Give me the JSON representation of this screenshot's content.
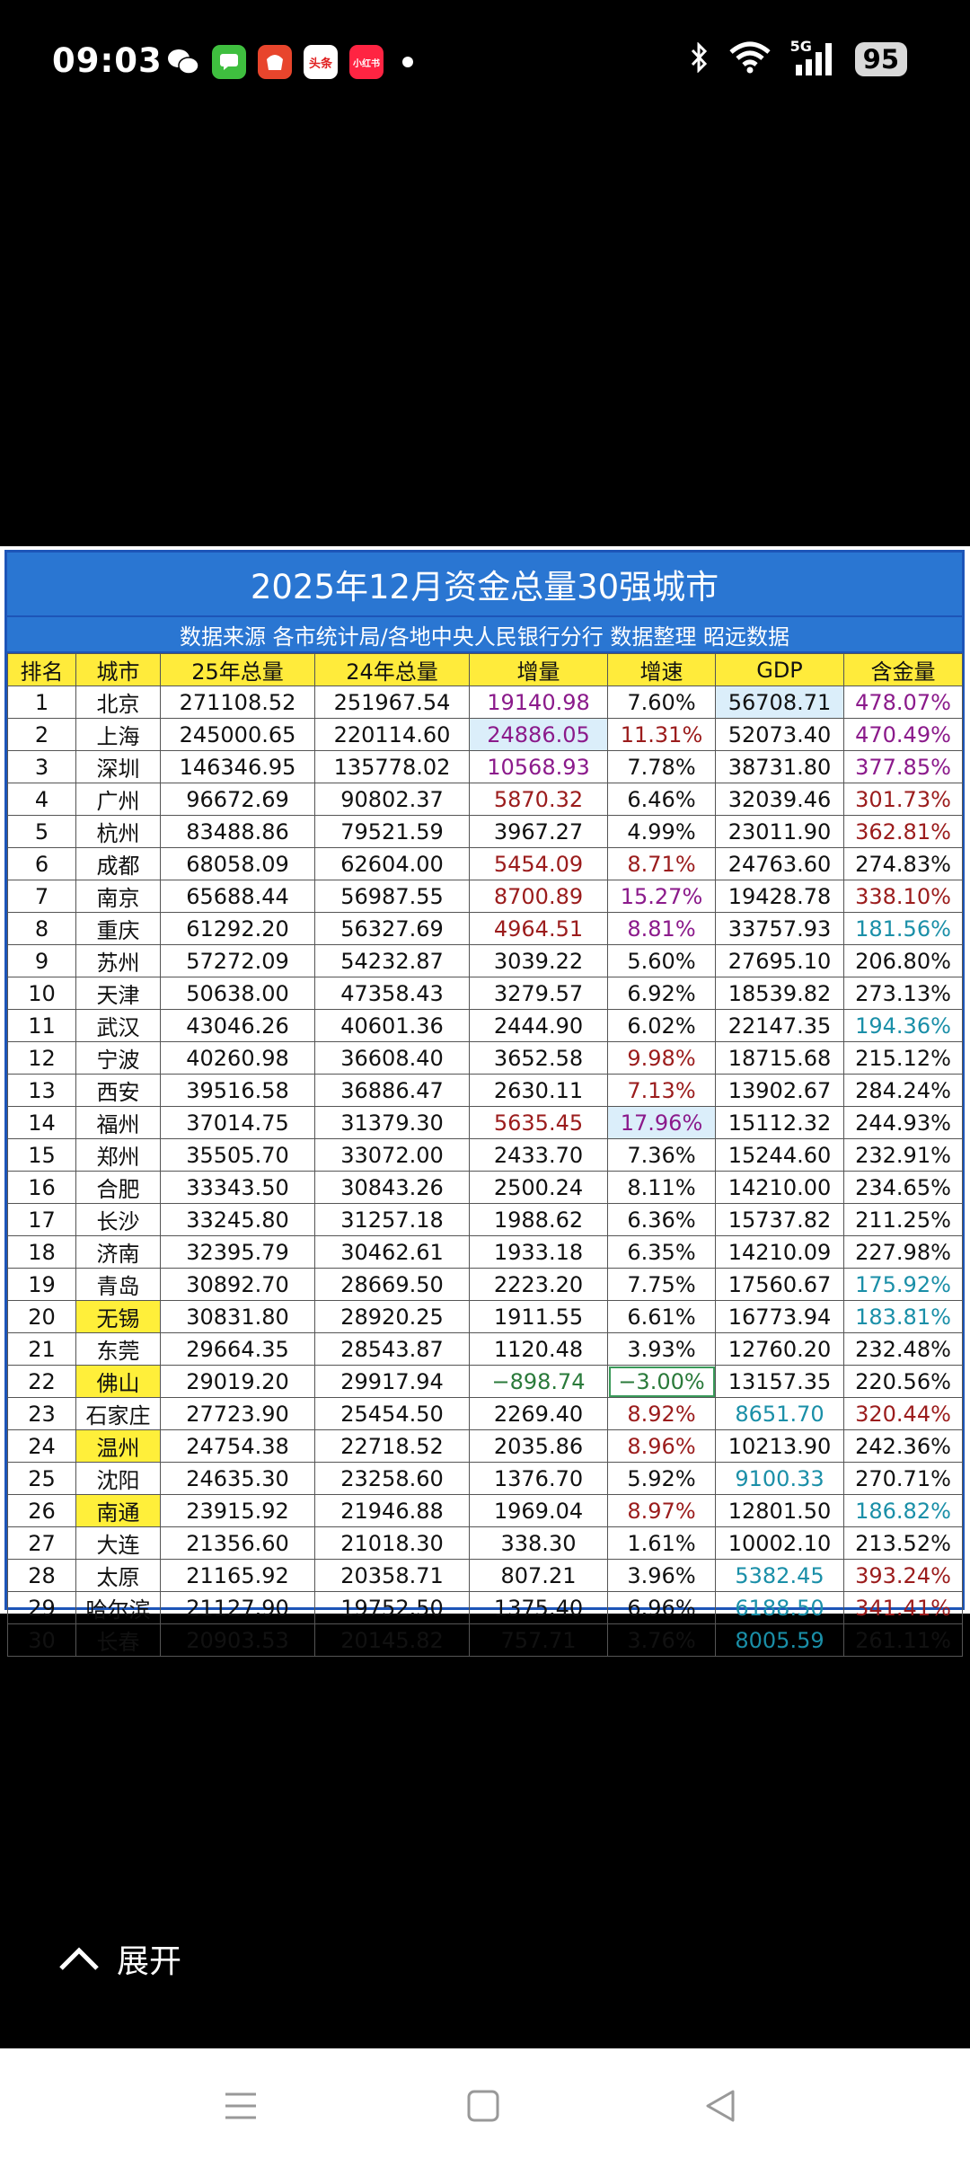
{
  "status_bar": {
    "time": "09:03",
    "notif_labels": [
      "头条",
      "小红书"
    ],
    "network": "5G",
    "battery": "95"
  },
  "table": {
    "title": "2025年12月资金总量30强城市",
    "subtitle": "数据来源 各市统计局/各地中央人民银行分行  数据整理 昭远数据",
    "headers": [
      "排名",
      "城市",
      "25年总量",
      "24年总量",
      "增量",
      "增速",
      "GDP",
      "含金量"
    ],
    "rows": [
      [
        "1",
        "北京",
        "271108.52",
        "251967.54",
        "19140.98",
        "7.60%",
        "56708.71",
        "478.07%"
      ],
      [
        "2",
        "上海",
        "245000.65",
        "220114.60",
        "24886.05",
        "11.31%",
        "52073.40",
        "470.49%"
      ],
      [
        "3",
        "深圳",
        "146346.95",
        "135778.02",
        "10568.93",
        "7.78%",
        "38731.80",
        "377.85%"
      ],
      [
        "4",
        "广州",
        "96672.69",
        "90802.37",
        "5870.32",
        "6.46%",
        "32039.46",
        "301.73%"
      ],
      [
        "5",
        "杭州",
        "83488.86",
        "79521.59",
        "3967.27",
        "4.99%",
        "23011.90",
        "362.81%"
      ],
      [
        "6",
        "成都",
        "68058.09",
        "62604.00",
        "5454.09",
        "8.71%",
        "24763.60",
        "274.83%"
      ],
      [
        "7",
        "南京",
        "65688.44",
        "56987.55",
        "8700.89",
        "15.27%",
        "19428.78",
        "338.10%"
      ],
      [
        "8",
        "重庆",
        "61292.20",
        "56327.69",
        "4964.51",
        "8.81%",
        "33757.93",
        "181.56%"
      ],
      [
        "9",
        "苏州",
        "57272.09",
        "54232.87",
        "3039.22",
        "5.60%",
        "27695.10",
        "206.80%"
      ],
      [
        "10",
        "天津",
        "50638.00",
        "47358.43",
        "3279.57",
        "6.92%",
        "18539.82",
        "273.13%"
      ],
      [
        "11",
        "武汉",
        "43046.26",
        "40601.36",
        "2444.90",
        "6.02%",
        "22147.35",
        "194.36%"
      ],
      [
        "12",
        "宁波",
        "40260.98",
        "36608.40",
        "3652.58",
        "9.98%",
        "18715.68",
        "215.12%"
      ],
      [
        "13",
        "西安",
        "39516.58",
        "36886.47",
        "2630.11",
        "7.13%",
        "13902.67",
        "284.24%"
      ],
      [
        "14",
        "福州",
        "37014.75",
        "31379.30",
        "5635.45",
        "17.96%",
        "15112.32",
        "244.93%"
      ],
      [
        "15",
        "郑州",
        "35505.70",
        "33072.00",
        "2433.70",
        "7.36%",
        "15244.60",
        "232.91%"
      ],
      [
        "16",
        "合肥",
        "33343.50",
        "30843.26",
        "2500.24",
        "8.11%",
        "14210.00",
        "234.65%"
      ],
      [
        "17",
        "长沙",
        "33245.80",
        "31257.18",
        "1988.62",
        "6.36%",
        "15737.82",
        "211.25%"
      ],
      [
        "18",
        "济南",
        "32395.79",
        "30462.61",
        "1933.18",
        "6.35%",
        "14210.09",
        "227.98%"
      ],
      [
        "19",
        "青岛",
        "30892.70",
        "28669.50",
        "2223.20",
        "7.75%",
        "17560.67",
        "175.92%"
      ],
      [
        "20",
        "无锡",
        "30831.80",
        "28920.25",
        "1911.55",
        "6.61%",
        "16773.94",
        "183.81%"
      ],
      [
        "21",
        "东莞",
        "29664.35",
        "28543.87",
        "1120.48",
        "3.93%",
        "12760.20",
        "232.48%"
      ],
      [
        "22",
        "佛山",
        "29019.20",
        "29917.94",
        "−898.74",
        "−3.00%",
        "13157.35",
        "220.56%"
      ],
      [
        "23",
        "石家庄",
        "27723.90",
        "25454.50",
        "2269.40",
        "8.92%",
        "8651.70",
        "320.44%"
      ],
      [
        "24",
        "温州",
        "24754.38",
        "22718.52",
        "2035.86",
        "8.96%",
        "10213.90",
        "242.36%"
      ],
      [
        "25",
        "沈阳",
        "24635.30",
        "23258.60",
        "1376.70",
        "5.92%",
        "9100.33",
        "270.71%"
      ],
      [
        "26",
        "南通",
        "23915.92",
        "21946.88",
        "1969.04",
        "8.97%",
        "12801.50",
        "186.82%"
      ],
      [
        "27",
        "大连",
        "21356.60",
        "21018.30",
        "338.30",
        "1.61%",
        "10002.10",
        "213.52%"
      ],
      [
        "28",
        "太原",
        "21165.92",
        "20358.71",
        "807.21",
        "3.96%",
        "5382.45",
        "393.24%"
      ],
      [
        "29",
        "哈尔滨",
        "21127.90",
        "19752.50",
        "1375.40",
        "6.96%",
        "6188.50",
        "341.41%"
      ],
      [
        "30",
        "长春",
        "20903.53",
        "20145.82",
        "757.71",
        "3.76%",
        "8005.59",
        "261.11%"
      ]
    ],
    "highlight_cities": [
      "20",
      "22",
      "24",
      "26"
    ],
    "colors": {
      "header_bg": "#ffeb3b",
      "title_bg": "#2a76d2",
      "highlight_city_bg": "#ffef3a",
      "purple": "#8b1a8b",
      "red": "#9b1c1c",
      "teal": "#1a8fa8",
      "green": "#2a7a3a"
    }
  },
  "expand_label": "展开"
}
